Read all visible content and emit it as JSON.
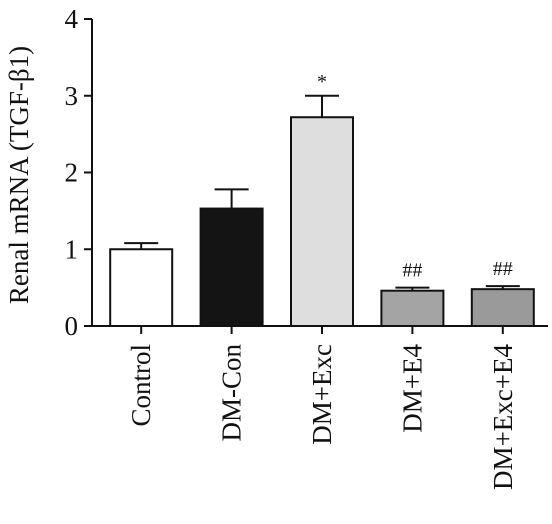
{
  "chart_data": {
    "type": "bar",
    "ylabel": "Renal mRNA (TGF-β1)",
    "ylim": [
      0,
      4
    ],
    "yticks": [
      "0",
      "1",
      "2",
      "3",
      "4"
    ],
    "grid": false,
    "categories": [
      "Control",
      "DM-Con",
      "DM+Exc",
      "DM+E4",
      "DM+Exc+E4"
    ],
    "values": [
      1.0,
      1.53,
      2.72,
      0.46,
      0.48
    ],
    "errors": [
      0.08,
      0.25,
      0.28,
      0.04,
      0.04
    ],
    "fill_colors": [
      "#ffffff",
      "#141414",
      "#dedede",
      "#a4a4a4",
      "#9a9a9a"
    ],
    "annotations": [
      "",
      "",
      "*",
      "##",
      "##"
    ]
  }
}
